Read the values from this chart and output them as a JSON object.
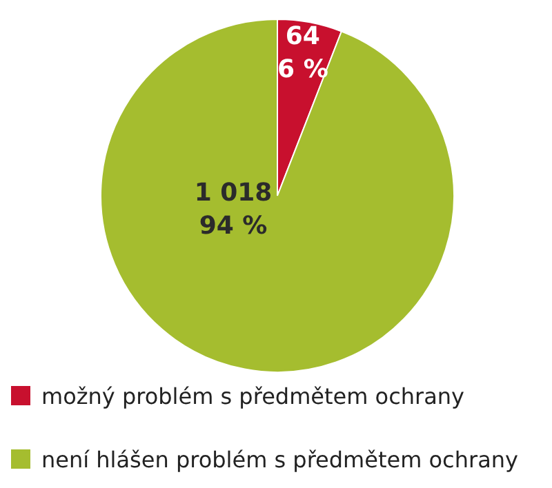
{
  "chart_data": {
    "type": "pie",
    "categories": [
      "možný problém s předmětem ochrany",
      "není hlášen problém s předmětem ochrany"
    ],
    "values": [
      64,
      1018
    ],
    "colors": [
      "#c8102e",
      "#a5bd2f"
    ],
    "value_labels": [
      "64\n6 %",
      "1 018\n94 %"
    ],
    "legend": "bottom"
  }
}
